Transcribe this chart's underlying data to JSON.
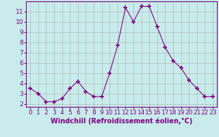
{
  "x": [
    0,
    1,
    2,
    3,
    4,
    5,
    6,
    7,
    8,
    9,
    10,
    11,
    12,
    13,
    14,
    15,
    16,
    17,
    18,
    19,
    20,
    21,
    22,
    23
  ],
  "y": [
    3.5,
    3.0,
    2.2,
    2.2,
    2.5,
    3.5,
    4.2,
    3.2,
    2.7,
    2.7,
    5.0,
    7.7,
    11.4,
    10.0,
    11.5,
    11.5,
    9.5,
    7.5,
    6.2,
    5.5,
    4.3,
    3.5,
    2.7,
    2.7
  ],
  "line_color": "#800080",
  "marker": "+",
  "marker_size": 4,
  "background_color": "#c8ecec",
  "grid_color": "#aaaaaa",
  "xlabel": "Windchill (Refroidissement éolien,°C)",
  "xlim": [
    -0.5,
    23.5
  ],
  "ylim": [
    1.7,
    12.0
  ],
  "yticks": [
    2,
    3,
    4,
    5,
    6,
    7,
    8,
    9,
    10,
    11
  ],
  "xticks": [
    0,
    1,
    2,
    3,
    4,
    5,
    6,
    7,
    8,
    9,
    10,
    11,
    12,
    13,
    14,
    15,
    16,
    17,
    18,
    19,
    20,
    21,
    22,
    23
  ],
  "tick_color": "#800080",
  "label_color": "#800080",
  "spine_color": "#800080",
  "xlabel_fontsize": 7,
  "tick_fontsize": 6.5,
  "linewidth": 0.8,
  "marker_color": "#800080"
}
